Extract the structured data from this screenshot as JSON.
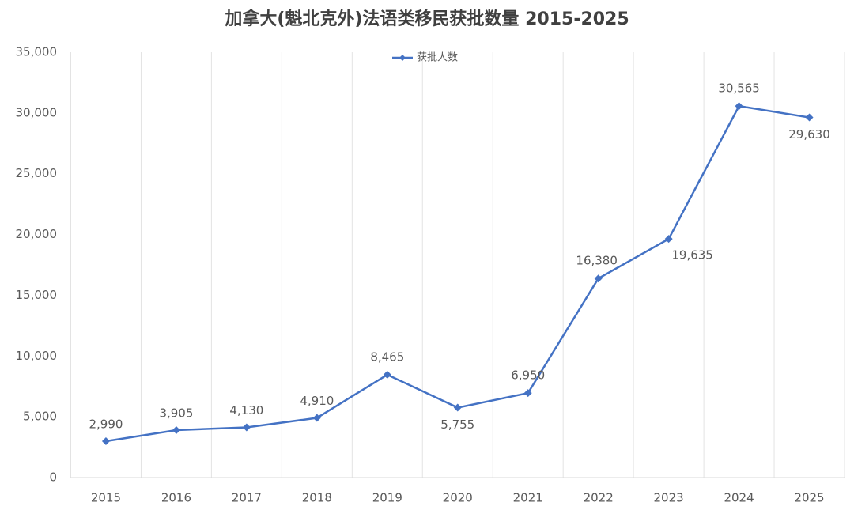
{
  "chart_data": {
    "type": "line",
    "title": "加拿大(魁北克外)法语类移民获批数量 2015-2025",
    "categories": [
      "2015",
      "2016",
      "2017",
      "2018",
      "2019",
      "2020",
      "2021",
      "2022",
      "2023",
      "2024",
      "2025"
    ],
    "series": [
      {
        "name": "获批人数",
        "color": "#4472c4",
        "values": [
          2990,
          3905,
          4130,
          4910,
          8465,
          5755,
          6950,
          16380,
          19635,
          30565,
          29630
        ],
        "value_labels": [
          "2,990",
          "3,905",
          "4,130",
          "4,910",
          "8,465",
          "5,755",
          "6,950",
          "16,380",
          "19,635",
          "30,565",
          "29,630"
        ]
      }
    ],
    "ylim": [
      0,
      35000
    ],
    "yticks": [
      0,
      {
        "value": 5000,
        "label": "5,000"
      },
      {
        "value": 10000,
        "label": "10,000"
      },
      {
        "value": 15000,
        "label": "15,000"
      },
      {
        "value": 20000,
        "label": "20,000"
      },
      {
        "value": 25000,
        "label": "25,000"
      },
      {
        "value": 30000,
        "label": "30,000"
      },
      {
        "value": 35000,
        "label": "35,000"
      }
    ],
    "grid": true,
    "legend": "top"
  }
}
